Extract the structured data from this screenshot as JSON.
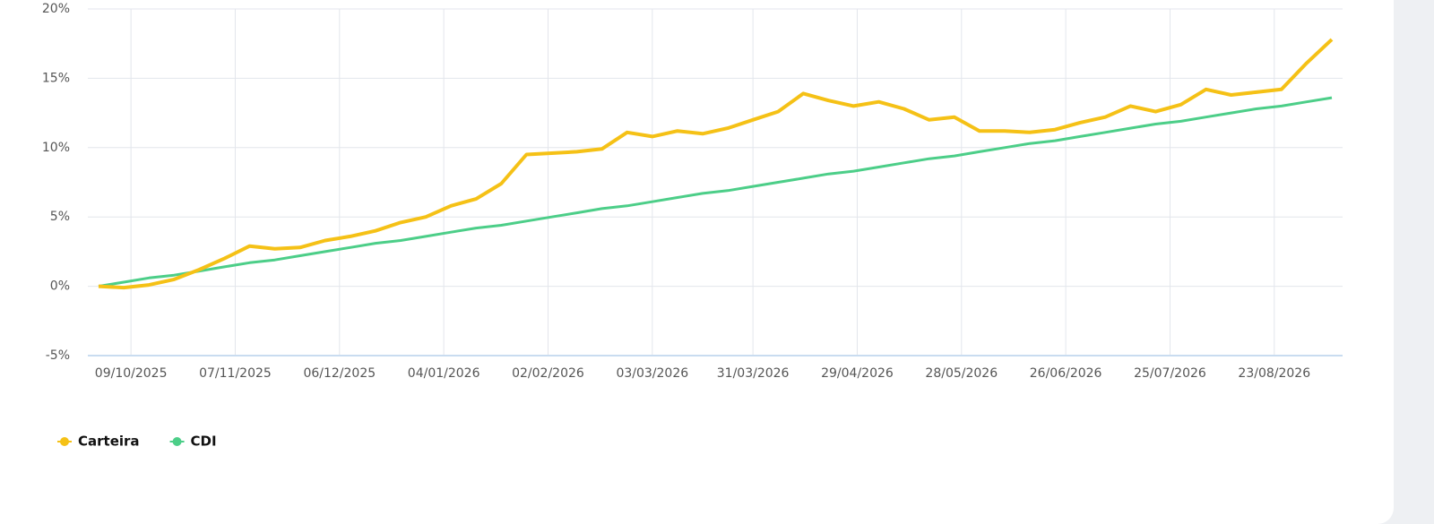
{
  "chart_data": {
    "type": "line",
    "x": [
      "2025-09-30",
      "2025-10-07",
      "2025-10-14",
      "2025-10-21",
      "2025-10-28",
      "2025-11-04",
      "2025-11-11",
      "2025-11-18",
      "2025-11-25",
      "2025-12-02",
      "2025-12-09",
      "2025-12-16",
      "2025-12-23",
      "2025-12-30",
      "2026-01-06",
      "2026-01-13",
      "2026-01-20",
      "2026-01-27",
      "2026-02-03",
      "2026-02-10",
      "2026-02-17",
      "2026-02-24",
      "2026-03-03",
      "2026-03-10",
      "2026-03-17",
      "2026-03-24",
      "2026-03-31",
      "2026-04-07",
      "2026-04-14",
      "2026-04-21",
      "2026-04-28",
      "2026-05-05",
      "2026-05-12",
      "2026-05-19",
      "2026-05-26",
      "2026-06-02",
      "2026-06-09",
      "2026-06-16",
      "2026-06-23",
      "2026-06-30",
      "2026-07-07",
      "2026-07-14",
      "2026-07-21",
      "2026-07-28",
      "2026-08-04",
      "2026-08-11",
      "2026-08-18",
      "2026-08-25",
      "2026-09-01",
      "2026-09-08"
    ],
    "series": [
      {
        "name": "Carteira",
        "color": "#f5c116",
        "values": [
          0,
          -0.1,
          0.1,
          0.5,
          1.2,
          2.0,
          2.9,
          2.7,
          2.8,
          3.3,
          3.6,
          4.0,
          4.6,
          5.0,
          5.8,
          6.3,
          7.4,
          9.5,
          9.6,
          9.7,
          9.9,
          11.1,
          10.8,
          11.2,
          11.0,
          11.4,
          12.0,
          12.6,
          13.9,
          13.4,
          13.0,
          13.3,
          12.8,
          12.0,
          12.2,
          11.2,
          11.2,
          11.1,
          11.3,
          11.8,
          12.2,
          13.0,
          12.6,
          13.1,
          14.2,
          13.8,
          14.0,
          14.2,
          16.1,
          17.8
        ]
      },
      {
        "name": "CDI",
        "color": "#4cce88",
        "values": [
          0,
          0.3,
          0.6,
          0.8,
          1.1,
          1.4,
          1.7,
          1.9,
          2.2,
          2.5,
          2.8,
          3.1,
          3.3,
          3.6,
          3.9,
          4.2,
          4.4,
          4.7,
          5.0,
          5.3,
          5.6,
          5.8,
          6.1,
          6.4,
          6.7,
          6.9,
          7.2,
          7.5,
          7.8,
          8.1,
          8.3,
          8.6,
          8.9,
          9.2,
          9.4,
          9.7,
          10.0,
          10.3,
          10.5,
          10.8,
          11.1,
          11.4,
          11.7,
          11.9,
          12.2,
          12.5,
          12.8,
          13.0,
          13.3,
          13.6
        ]
      }
    ],
    "xlim": [
      "2025-09-27",
      "2026-09-11"
    ],
    "xticks": [
      {
        "value": "2025-10-09",
        "label": "09/10/2025"
      },
      {
        "value": "2025-11-07",
        "label": "07/11/2025"
      },
      {
        "value": "2025-12-06",
        "label": "06/12/2025"
      },
      {
        "value": "2026-01-04",
        "label": "04/01/2026"
      },
      {
        "value": "2026-02-02",
        "label": "02/02/2026"
      },
      {
        "value": "2026-03-03",
        "label": "03/03/2026"
      },
      {
        "value": "2026-03-31",
        "label": "31/03/2026"
      },
      {
        "value": "2026-04-29",
        "label": "29/04/2026"
      },
      {
        "value": "2026-05-28",
        "label": "28/05/2026"
      },
      {
        "value": "2026-06-26",
        "label": "26/06/2026"
      },
      {
        "value": "2026-07-25",
        "label": "25/07/2026"
      },
      {
        "value": "2026-08-23",
        "label": "23/08/2026"
      }
    ],
    "ylim": [
      -5,
      20
    ],
    "yticks": [
      {
        "value": -5,
        "label": "-5%"
      },
      {
        "value": 0,
        "label": "0%"
      },
      {
        "value": 5,
        "label": "5%"
      },
      {
        "value": 10,
        "label": "10%"
      },
      {
        "value": 15,
        "label": "15%"
      },
      {
        "value": 20,
        "label": "20%"
      }
    ],
    "grid": true,
    "legend": "bottom-left"
  }
}
